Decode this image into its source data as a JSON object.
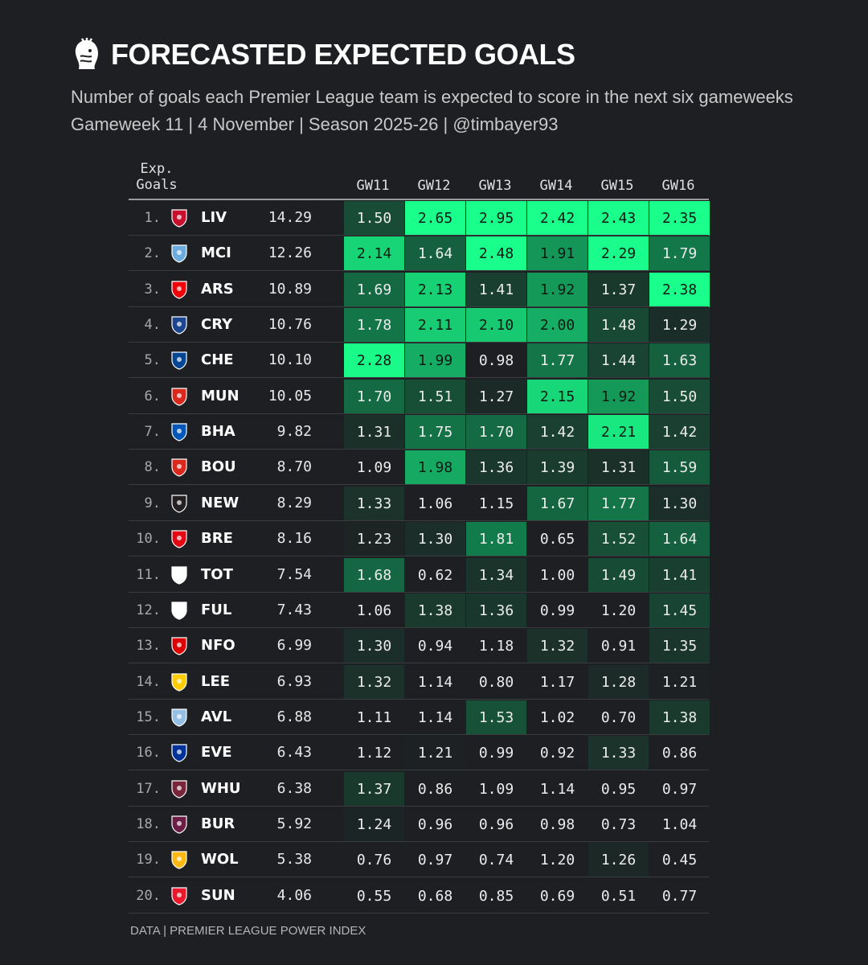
{
  "header": {
    "title": "FORECASTED EXPECTED GOALS",
    "subtitle": "Number of goals each Premier League team is expected to score in the next six gameweeks",
    "subtitle2": "Gameweek 11 | 4 November | Season 2025-26 | @timbayer93"
  },
  "footer": {
    "source": "DATA | PREMIER LEAGUE POWER INDEX"
  },
  "chart_data": {
    "type": "table",
    "title": "FORECASTED EXPECTED GOALS",
    "columns": [
      "Exp.\nGoals",
      "GW11",
      "GW12",
      "GW13",
      "GW14",
      "GW15",
      "GW16"
    ],
    "exp_header_lines": [
      "Exp.",
      "Goals"
    ],
    "gameweeks": [
      "GW11",
      "GW12",
      "GW13",
      "GW14",
      "GW15",
      "GW16"
    ],
    "rows": [
      {
        "rank": "1.",
        "team": "LIV",
        "exp": "14.29",
        "values": [
          1.5,
          2.65,
          2.95,
          2.42,
          2.43,
          2.35
        ],
        "crest": "#c8102e"
      },
      {
        "rank": "2.",
        "team": "MCI",
        "exp": "12.26",
        "values": [
          2.14,
          1.64,
          2.48,
          1.91,
          2.29,
          1.79
        ],
        "crest": "#6cabdd"
      },
      {
        "rank": "3.",
        "team": "ARS",
        "exp": "10.89",
        "values": [
          1.69,
          2.13,
          1.41,
          1.92,
          1.37,
          2.38
        ],
        "crest": "#ef0107"
      },
      {
        "rank": "4.",
        "team": "CRY",
        "exp": "10.76",
        "values": [
          1.78,
          2.11,
          2.1,
          2.0,
          1.48,
          1.29
        ],
        "crest": "#1b458f"
      },
      {
        "rank": "5.",
        "team": "CHE",
        "exp": "10.10",
        "values": [
          2.28,
          1.99,
          0.98,
          1.77,
          1.44,
          1.63
        ],
        "crest": "#034694"
      },
      {
        "rank": "6.",
        "team": "MUN",
        "exp": "10.05",
        "values": [
          1.7,
          1.51,
          1.27,
          2.15,
          1.92,
          1.5
        ],
        "crest": "#da291c"
      },
      {
        "rank": "7.",
        "team": "BHA",
        "exp": "9.82",
        "values": [
          1.31,
          1.75,
          1.7,
          1.42,
          2.21,
          1.42
        ],
        "crest": "#0057b8"
      },
      {
        "rank": "8.",
        "team": "BOU",
        "exp": "8.70",
        "values": [
          1.09,
          1.98,
          1.36,
          1.39,
          1.31,
          1.59
        ],
        "crest": "#da291c"
      },
      {
        "rank": "9.",
        "team": "NEW",
        "exp": "8.29",
        "values": [
          1.33,
          1.06,
          1.15,
          1.67,
          1.77,
          1.3
        ],
        "crest": "#241f20"
      },
      {
        "rank": "10.",
        "team": "BRE",
        "exp": "8.16",
        "values": [
          1.23,
          1.3,
          1.81,
          0.65,
          1.52,
          1.64
        ],
        "crest": "#e30613"
      },
      {
        "rank": "11.",
        "team": "TOT",
        "exp": "7.54",
        "values": [
          1.68,
          0.62,
          1.34,
          1.0,
          1.49,
          1.41
        ],
        "crest": "#ffffff"
      },
      {
        "rank": "12.",
        "team": "FUL",
        "exp": "7.43",
        "values": [
          1.06,
          1.38,
          1.36,
          0.99,
          1.2,
          1.45
        ],
        "crest": "#ffffff"
      },
      {
        "rank": "13.",
        "team": "NFO",
        "exp": "6.99",
        "values": [
          1.3,
          0.94,
          1.18,
          1.32,
          0.91,
          1.35
        ],
        "crest": "#dd0000"
      },
      {
        "rank": "14.",
        "team": "LEE",
        "exp": "6.93",
        "values": [
          1.32,
          1.14,
          0.8,
          1.17,
          1.28,
          1.21
        ],
        "crest": "#ffcd00"
      },
      {
        "rank": "15.",
        "team": "AVL",
        "exp": "6.88",
        "values": [
          1.11,
          1.14,
          1.53,
          1.02,
          0.7,
          1.38
        ],
        "crest": "#95bfe5"
      },
      {
        "rank": "16.",
        "team": "EVE",
        "exp": "6.43",
        "values": [
          1.12,
          1.21,
          0.99,
          0.92,
          1.33,
          0.86
        ],
        "crest": "#003399"
      },
      {
        "rank": "17.",
        "team": "WHU",
        "exp": "6.38",
        "values": [
          1.37,
          0.86,
          1.09,
          1.14,
          0.95,
          0.97
        ],
        "crest": "#7a263a"
      },
      {
        "rank": "18.",
        "team": "BUR",
        "exp": "5.92",
        "values": [
          1.24,
          0.96,
          0.96,
          0.98,
          0.73,
          1.04
        ],
        "crest": "#6c1d45"
      },
      {
        "rank": "19.",
        "team": "WOL",
        "exp": "5.38",
        "values": [
          0.76,
          0.97,
          0.74,
          1.2,
          1.26,
          0.45
        ],
        "crest": "#fdb913"
      },
      {
        "rank": "20.",
        "team": "SUN",
        "exp": "4.06",
        "values": [
          0.55,
          0.68,
          0.85,
          0.69,
          0.51,
          0.77
        ],
        "crest": "#eb172b"
      }
    ],
    "color_scale": {
      "low": "#1d1f22",
      "mid": "#127a4a",
      "high": "#1aff8c",
      "min": 1.2,
      "max": 2.3
    }
  }
}
